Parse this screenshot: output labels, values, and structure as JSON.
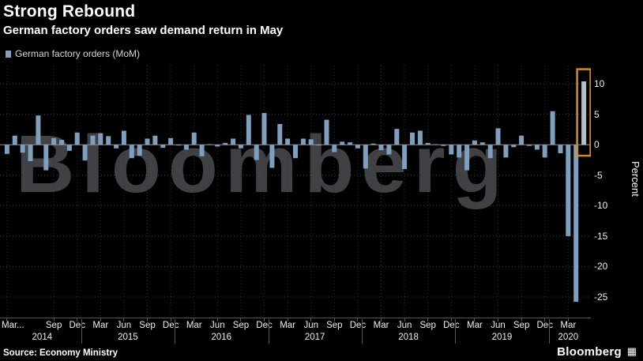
{
  "watermark": "Bloomberg",
  "legend": {
    "swatch_color": "#7f9fbf"
  },
  "footer": {
    "source": "Source: Economy Ministry",
    "logo": "Bloomberg"
  },
  "chart_data": {
    "type": "bar",
    "title": "Strong Rebound",
    "subtitle": "German factory orders saw demand return in May",
    "legend": [
      "German factory orders (MoM)"
    ],
    "ylabel": "Percent",
    "ylim": [
      -28.5,
      13
    ],
    "yticks": [
      10,
      5,
      0,
      -5,
      -10,
      -15,
      -20,
      -25
    ],
    "grid": true,
    "legend_position": "top-left",
    "bar_color": "#7f9fbf",
    "highlight_bar_color": "#b5bfc6",
    "months": [
      "Mar 2014",
      "Apr 2014",
      "May 2014",
      "Jun 2014",
      "Jul 2014",
      "Aug 2014",
      "Sep 2014",
      "Oct 2014",
      "Nov 2014",
      "Dec 2014",
      "Jan 2015",
      "Feb 2015",
      "Mar 2015",
      "Apr 2015",
      "May 2015",
      "Jun 2015",
      "Jul 2015",
      "Aug 2015",
      "Sep 2015",
      "Oct 2015",
      "Nov 2015",
      "Dec 2015",
      "Jan 2016",
      "Feb 2016",
      "Mar 2016",
      "Apr 2016",
      "May 2016",
      "Jun 2016",
      "Jul 2016",
      "Aug 2016",
      "Sep 2016",
      "Oct 2016",
      "Nov 2016",
      "Dec 2016",
      "Jan 2017",
      "Feb 2017",
      "Mar 2017",
      "Apr 2017",
      "May 2017",
      "Jun 2017",
      "Jul 2017",
      "Aug 2017",
      "Sep 2017",
      "Oct 2017",
      "Nov 2017",
      "Dec 2017",
      "Jan 2018",
      "Feb 2018",
      "Mar 2018",
      "Apr 2018",
      "May 2018",
      "Jun 2018",
      "Jul 2018",
      "Aug 2018",
      "Sep 2018",
      "Oct 2018",
      "Nov 2018",
      "Dec 2018",
      "Jan 2019",
      "Feb 2019",
      "Mar 2019",
      "Apr 2019",
      "May 2019",
      "Jun 2019",
      "Jul 2019",
      "Aug 2019",
      "Sep 2019",
      "Oct 2019",
      "Nov 2019",
      "Dec 2019",
      "Jan 2020",
      "Feb 2020",
      "Mar 2020",
      "Apr 2020",
      "May 2020"
    ],
    "values": [
      -1.5,
      1.5,
      -1.3,
      -2.7,
      4.8,
      -4.2,
      1.1,
      0.8,
      -1.0,
      2.0,
      -2.6,
      1.5,
      1.9,
      1.4,
      -0.6,
      2.3,
      -2.2,
      -1.8,
      1.0,
      1.5,
      -0.5,
      1.1,
      -0.1,
      -0.8,
      2.0,
      -1.9,
      0.1,
      -0.3,
      0.3,
      1.0,
      -0.6,
      4.9,
      -2.5,
      5.2,
      -3.8,
      3.4,
      1.0,
      -2.2,
      1.0,
      0.9,
      -0.1,
      4.1,
      -1.2,
      0.5,
      0.4,
      -0.6,
      -3.9,
      0.2,
      -0.9,
      -1.6,
      2.6,
      -4.0,
      2.0,
      2.3,
      0.3,
      0.1,
      -0.2,
      -1.6,
      -2.1,
      -4.2,
      0.7,
      0.4,
      -2.2,
      2.7,
      -2.1,
      -0.4,
      1.5,
      -0.2,
      -0.8,
      -2.1,
      5.5,
      -1.4,
      -15.0,
      -25.8,
      10.4
    ],
    "highlight": {
      "index": 74,
      "value": 10.4,
      "color": "#d08b29"
    },
    "xticks": [
      {
        "label": "Mar...",
        "index": 0
      },
      {
        "label": "Sep",
        "index": 6
      },
      {
        "label": "Dec",
        "index": 9
      },
      {
        "label": "Mar",
        "index": 12
      },
      {
        "label": "Jun",
        "index": 15
      },
      {
        "label": "Sep",
        "index": 18
      },
      {
        "label": "Dec",
        "index": 21
      },
      {
        "label": "Mar",
        "index": 24
      },
      {
        "label": "Jun",
        "index": 27
      },
      {
        "label": "Sep",
        "index": 30
      },
      {
        "label": "Dec",
        "index": 33
      },
      {
        "label": "Mar",
        "index": 36
      },
      {
        "label": "Jun",
        "index": 39
      },
      {
        "label": "Sep",
        "index": 42
      },
      {
        "label": "Dec",
        "index": 45
      },
      {
        "label": "Mar",
        "index": 48
      },
      {
        "label": "Jun",
        "index": 51
      },
      {
        "label": "Sep",
        "index": 54
      },
      {
        "label": "Dec",
        "index": 57
      },
      {
        "label": "Mar",
        "index": 60
      },
      {
        "label": "Jun",
        "index": 63
      },
      {
        "label": "Sep",
        "index": 66
      },
      {
        "label": "Dec",
        "index": 69
      },
      {
        "label": "Mar",
        "index": 72
      }
    ],
    "year_labels": [
      {
        "label": "2014",
        "center_index": 4.5
      },
      {
        "label": "2015",
        "center_index": 15.5
      },
      {
        "label": "2016",
        "center_index": 27.5
      },
      {
        "label": "2017",
        "center_index": 39.5
      },
      {
        "label": "2018",
        "center_index": 51.5
      },
      {
        "label": "2019",
        "center_index": 63.5
      },
      {
        "label": "2020",
        "center_index": 72
      }
    ],
    "year_divider_indices": [
      10,
      22,
      34,
      46,
      58,
      70
    ]
  }
}
